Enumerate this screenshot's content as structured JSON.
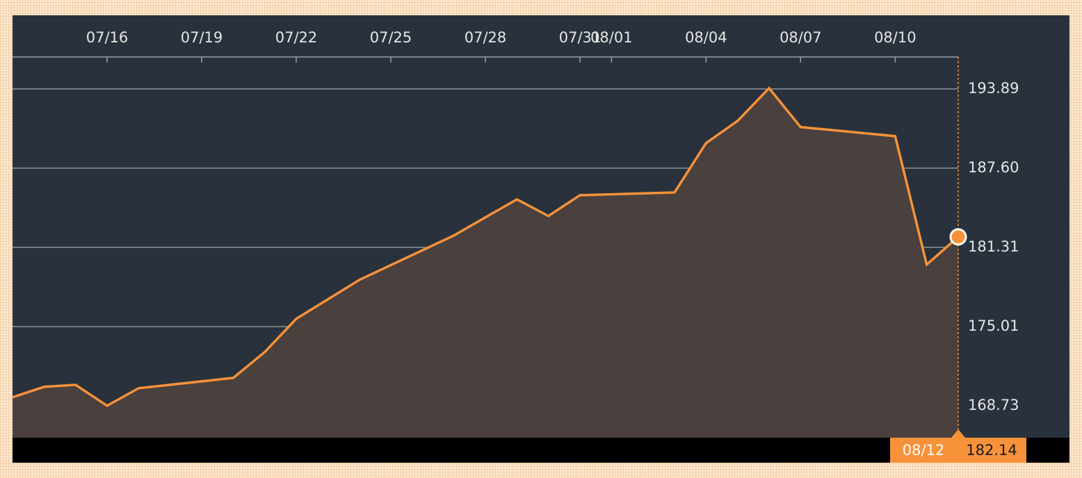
{
  "chart_data": {
    "type": "area",
    "x": [
      "07/13",
      "07/14",
      "07/15",
      "07/16",
      "07/17",
      "07/20",
      "07/21",
      "07/22",
      "07/24",
      "07/27",
      "07/28",
      "07/29",
      "07/30",
      "07/31",
      "08/03",
      "08/04",
      "08/05",
      "08/06",
      "08/07",
      "08/10",
      "08/11",
      "08/12"
    ],
    "values": [
      169.4,
      170.23,
      170.39,
      168.73,
      170.12,
      170.94,
      172.99,
      175.63,
      178.72,
      182.25,
      183.69,
      185.12,
      183.8,
      185.45,
      185.67,
      189.59,
      191.35,
      193.95,
      190.86,
      190.14,
      179.94,
      182.14
    ],
    "color": "#f7923a",
    "xticks": [
      "07/16",
      "07/19",
      "07/22",
      "07/25",
      "07/28",
      "07/31",
      "08/01",
      "08/04",
      "08/07",
      "08/10"
    ],
    "ylim": [
      166.19,
      199.74
    ],
    "yticks": [
      193.89,
      {
        "value": 187.6,
        "label": "187.60"
      },
      181.31,
      175.01,
      168.73
    ],
    "grid": true
  }
}
